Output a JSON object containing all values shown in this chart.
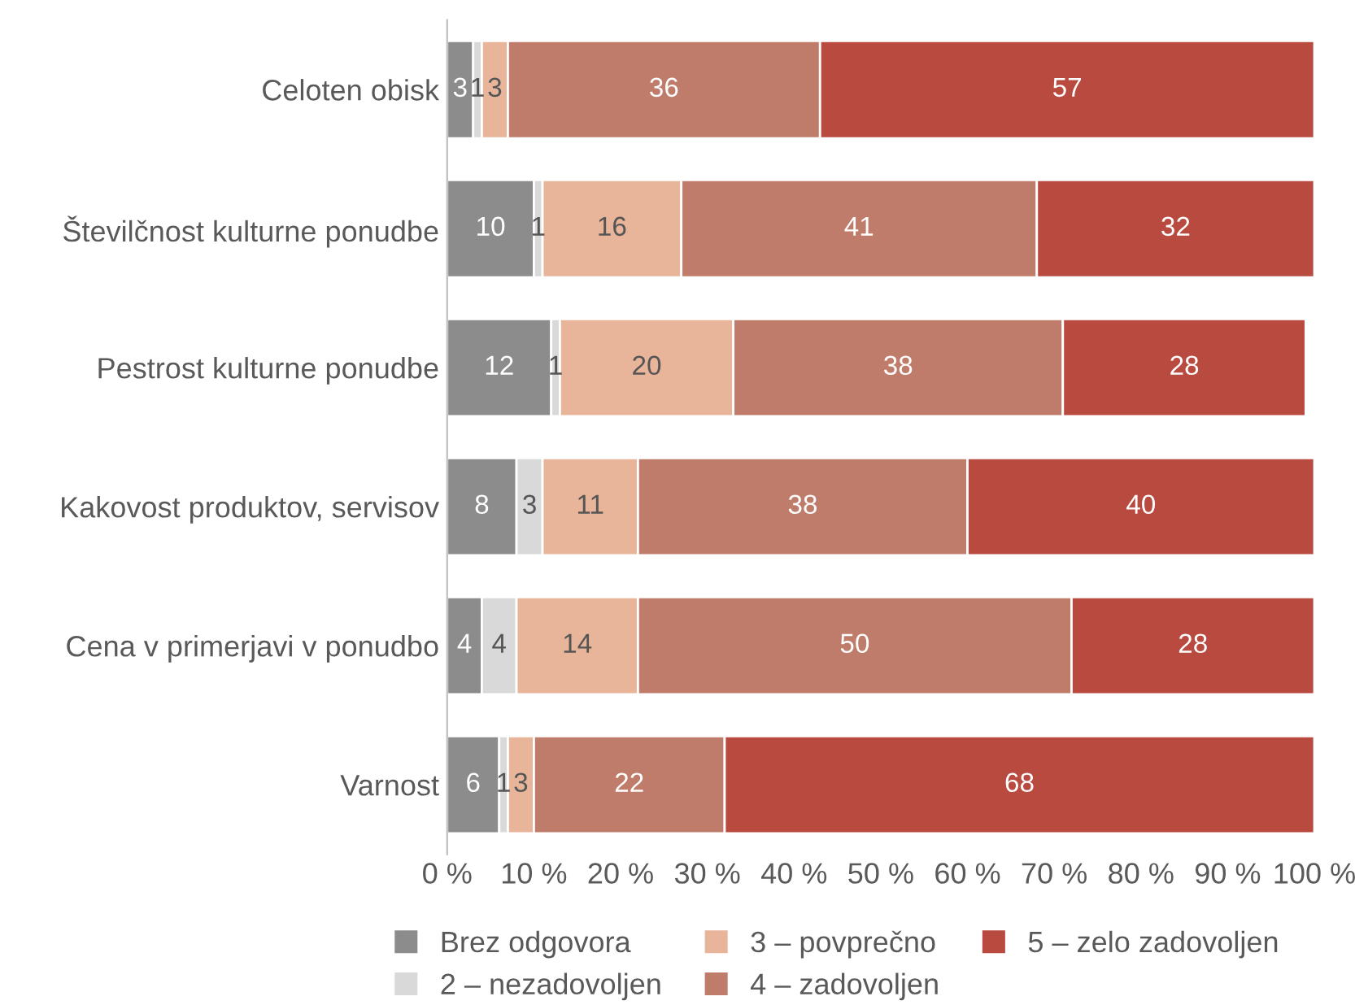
{
  "chart_data": {
    "type": "bar",
    "orientation": "horizontal",
    "stacked": true,
    "data_labels": true,
    "legend": "bottom",
    "grid": false,
    "categories": [
      "Celoten obisk",
      "Številčnost kulturne ponudbe",
      "Pestrost kulturne ponudbe",
      "Kakovost produktov, servisov",
      "Cena v primerjavi v ponudbo",
      "Varnost"
    ],
    "xlim": [
      0,
      100
    ],
    "xticks": [
      {
        "value": 0,
        "label": "0 %"
      },
      {
        "value": 10,
        "label": "10 %"
      },
      {
        "value": 20,
        "label": "20 %"
      },
      {
        "value": 30,
        "label": "30 %"
      },
      {
        "value": 40,
        "label": "40 %"
      },
      {
        "value": 50,
        "label": "50 %"
      },
      {
        "value": 60,
        "label": "60 %"
      },
      {
        "value": 70,
        "label": "70 %"
      },
      {
        "value": 80,
        "label": "80 %"
      },
      {
        "value": 90,
        "label": "90 %"
      },
      {
        "value": 100,
        "label": "100 %"
      }
    ],
    "series": [
      {
        "name": "Brez odgovora",
        "color": "#8c8c8c",
        "values": [
          3,
          10,
          12,
          8,
          4,
          6
        ]
      },
      {
        "name": "2 – nezadovoljen",
        "color": "#d9d9d9",
        "values": [
          1,
          1,
          1,
          3,
          4,
          1
        ]
      },
      {
        "name": "3 – povprečno",
        "color": "#e8b59a",
        "values": [
          3,
          16,
          20,
          11,
          14,
          3
        ]
      },
      {
        "name": "4 – zadovoljen",
        "color": "#c07c6a",
        "values": [
          36,
          41,
          38,
          38,
          50,
          22
        ]
      },
      {
        "name": "5 – zelo zadovoljen",
        "color": "#b94a40",
        "values": [
          57,
          32,
          28,
          40,
          28,
          68
        ]
      }
    ]
  }
}
